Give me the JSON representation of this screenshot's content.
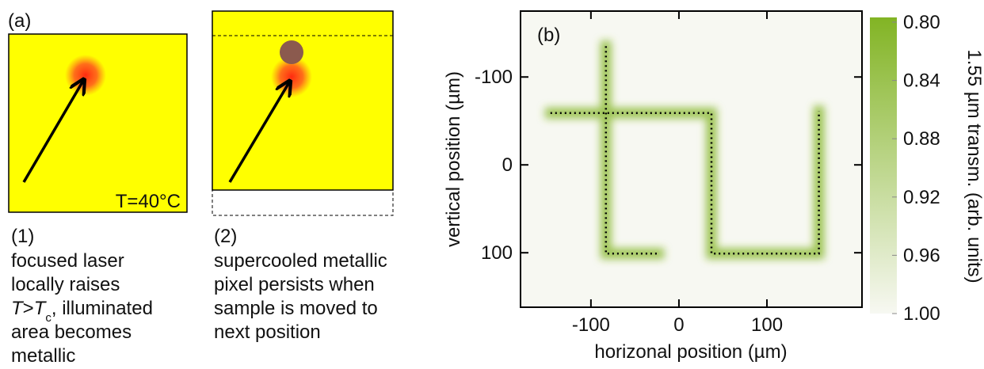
{
  "panel_a": {
    "label": "(a)",
    "temperature": "T=40°C",
    "step1": {
      "number": "(1)",
      "lines": [
        "focused laser",
        "locally raises",
        [
          "T",
          ">",
          "T",
          "c",
          ", illuminated"
        ],
        "area becomes",
        "metallic"
      ]
    },
    "step2": {
      "number": "(2)",
      "lines": [
        "supercooled metallic",
        "pixel persists when",
        "sample is moved to",
        "next position"
      ]
    }
  },
  "chart_data": {
    "type": "heatmap",
    "panel_label": "(b)",
    "x_label": "horizonal position (µm)",
    "y_label": "vertical position (µm)",
    "colorbar_label": "1.55 µm transm. (arb. units)",
    "xlim": [
      -180,
      208
    ],
    "ylim": [
      162,
      -175
    ],
    "xticks": [
      -100,
      0,
      100
    ],
    "yticks": [
      -100,
      0,
      100
    ],
    "clim": [
      1.0,
      0.8
    ],
    "cticks": [
      {
        "value": 0.8,
        "label": "0.80"
      },
      0.84,
      0.88,
      0.92,
      0.96,
      {
        "value": 1.0,
        "label": "1.00"
      }
    ],
    "colormap": [
      "#f7f8f2",
      "#82b424"
    ],
    "series": [
      {
        "color": "#82b424",
        "x": [
          -146,
          37,
          37,
          159,
          159,
          null,
          -83,
          -83,
          -23
        ],
        "y": [
          -59,
          -59,
          101,
          101,
          -61,
          null,
          -135,
          101,
          101
        ]
      }
    ]
  }
}
